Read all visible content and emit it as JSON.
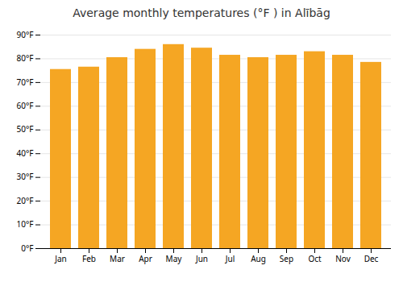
{
  "chart_data": {
    "type": "bar",
    "title": "Average monthly temperatures (°F ) in Alībāg",
    "categories": [
      "Jan",
      "Feb",
      "Mar",
      "Apr",
      "May",
      "Jun",
      "Jul",
      "Aug",
      "Sep",
      "Oct",
      "Nov",
      "Dec"
    ],
    "values": [
      75.5,
      76.5,
      80.5,
      84.0,
      86.0,
      84.5,
      81.5,
      80.5,
      81.5,
      83.0,
      81.5,
      78.5
    ],
    "color": "#F5A623",
    "ylim": [
      0,
      90
    ],
    "yticks": [
      {
        "value": 0,
        "label": "0°F"
      },
      {
        "value": 10,
        "label": "10°F"
      },
      {
        "value": 20,
        "label": "20°F"
      },
      {
        "value": 30,
        "label": "30°F"
      },
      {
        "value": 40,
        "label": "40°F"
      },
      {
        "value": 50,
        "label": "50°F"
      },
      {
        "value": 60,
        "label": "60°F"
      },
      {
        "value": 70,
        "label": "70°F"
      },
      {
        "value": 80,
        "label": "80°F"
      },
      {
        "value": 90,
        "label": "90°F"
      }
    ],
    "grid": true
  }
}
